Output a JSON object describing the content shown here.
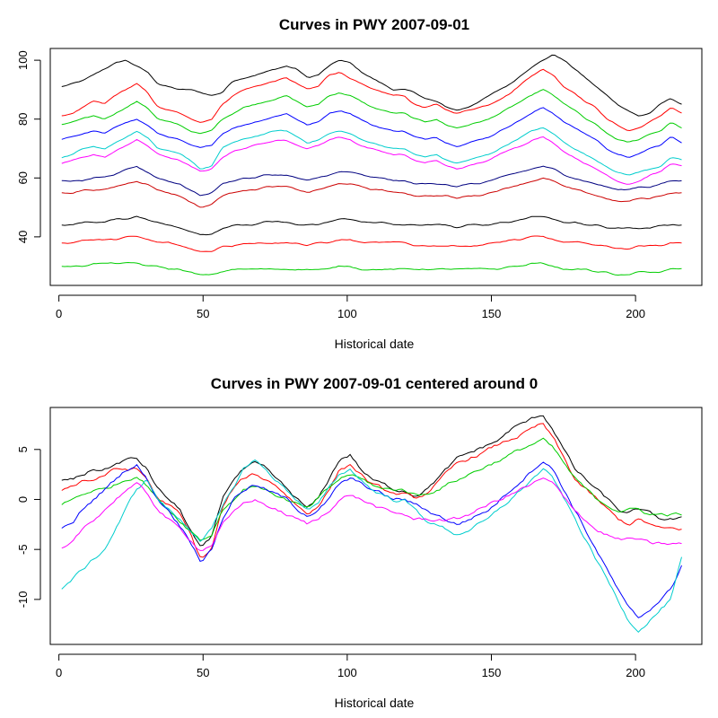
{
  "chart_data": [
    {
      "type": "line",
      "title": "Curves in PWY 2007-09-01",
      "xlabel": "Historical date",
      "ylabel": "",
      "xlim": [
        -3,
        223
      ],
      "ylim": [
        23.5,
        104
      ],
      "xticks": [
        0,
        50,
        100,
        150,
        200
      ],
      "xtick_labels": [
        "0",
        "50",
        "100",
        "150",
        "200"
      ],
      "yticks": [
        40,
        60,
        80,
        100
      ],
      "ytick_labels": [
        "40",
        "60",
        "80",
        "100"
      ],
      "n_points": 216,
      "grid": false,
      "legend": "none",
      "series_colors": [
        "#000000",
        "#ff0000",
        "#00cd00",
        "#0000ff",
        "#00cdcd",
        "#ff00ff",
        "#000080",
        "#cc0000"
      ],
      "series": [
        {
          "values": [
            91,
            92,
            93,
            95,
            97,
            99,
            100,
            98,
            96,
            92,
            91,
            90,
            90,
            89,
            88,
            89,
            93,
            94,
            95,
            96,
            97,
            98,
            97,
            94,
            95,
            98,
            100,
            99,
            96,
            94,
            92,
            90,
            90,
            89,
            87,
            86,
            84,
            83,
            84,
            86,
            88,
            90,
            92,
            95,
            98,
            100,
            102,
            100,
            97,
            94,
            91,
            88,
            85,
            83,
            81,
            82,
            85,
            87,
            85
          ]
        },
        {
          "values": [
            81,
            82,
            84,
            86,
            85,
            88,
            90,
            92,
            89,
            84,
            83,
            82,
            80,
            79,
            80,
            85,
            88,
            90,
            91,
            92,
            93,
            94,
            92,
            90,
            91,
            95,
            96,
            94,
            92,
            90,
            89,
            88,
            88,
            85,
            84,
            85,
            83,
            82,
            83,
            84,
            85,
            87,
            89,
            92,
            95,
            97,
            95,
            91,
            89,
            86,
            84,
            80,
            78,
            76,
            77,
            79,
            81,
            84,
            82
          ]
        },
        {
          "values": [
            78,
            79,
            80,
            81,
            80,
            82,
            84,
            86,
            84,
            80,
            79,
            78,
            76,
            75,
            76,
            80,
            82,
            84,
            85,
            86,
            87,
            88,
            86,
            84,
            85,
            88,
            89,
            88,
            86,
            84,
            83,
            82,
            82,
            80,
            79,
            80,
            78,
            77,
            78,
            79,
            80,
            82,
            84,
            86,
            88,
            90,
            88,
            85,
            83,
            80,
            78,
            75,
            73,
            72,
            73,
            75,
            76,
            79,
            77
          ]
        },
        {
          "values": [
            73,
            74,
            75,
            76,
            75,
            77,
            79,
            80,
            78,
            75,
            74,
            73,
            71,
            70,
            71,
            75,
            77,
            78,
            79,
            80,
            81,
            82,
            80,
            78,
            79,
            82,
            83,
            82,
            80,
            78,
            77,
            76,
            76,
            74,
            73,
            74,
            72,
            71,
            72,
            73,
            74,
            76,
            78,
            80,
            82,
            84,
            82,
            79,
            77,
            75,
            73,
            70,
            68,
            67,
            68,
            70,
            71,
            74,
            72
          ]
        },
        {
          "values": [
            67,
            68,
            70,
            71,
            70,
            72,
            74,
            76,
            74,
            70,
            69,
            68,
            66,
            63,
            64,
            70,
            72,
            73,
            74,
            75,
            76,
            76,
            74,
            72,
            73,
            75,
            76,
            75,
            73,
            72,
            71,
            70,
            70,
            68,
            67,
            68,
            66,
            65,
            66,
            67,
            68,
            70,
            72,
            74,
            76,
            77,
            75,
            72,
            70,
            68,
            66,
            64,
            62,
            61,
            62,
            63,
            64,
            67,
            66
          ]
        },
        {
          "values": [
            65,
            66,
            67,
            68,
            67,
            69,
            71,
            73,
            71,
            68,
            67,
            66,
            64,
            62,
            63,
            67,
            69,
            70,
            71,
            72,
            73,
            73,
            71,
            70,
            71,
            73,
            74,
            73,
            71,
            70,
            69,
            68,
            68,
            66,
            65,
            66,
            64,
            63,
            64,
            65,
            66,
            68,
            70,
            71,
            73,
            74,
            72,
            69,
            67,
            65,
            63,
            61,
            59,
            58,
            59,
            61,
            62,
            65,
            64
          ]
        },
        {
          "values": [
            59,
            59,
            59,
            60,
            60,
            61,
            63,
            64,
            62,
            60,
            59,
            58,
            56,
            54,
            55,
            58,
            59,
            60,
            60,
            61,
            61,
            61,
            60,
            59,
            60,
            61,
            62,
            62,
            61,
            60,
            60,
            59,
            59,
            58,
            58,
            58,
            58,
            57,
            58,
            58,
            59,
            60,
            61,
            62,
            63,
            64,
            63,
            61,
            60,
            59,
            58,
            57,
            56,
            56,
            57,
            57,
            58,
            59,
            59
          ]
        },
        {
          "values": [
            55,
            55,
            56,
            56,
            56,
            57,
            58,
            59,
            58,
            56,
            55,
            54,
            52,
            50,
            51,
            54,
            55,
            56,
            56,
            57,
            57,
            57,
            56,
            55,
            56,
            57,
            58,
            58,
            57,
            56,
            56,
            55,
            55,
            54,
            54,
            54,
            54,
            53,
            54,
            54,
            55,
            56,
            57,
            58,
            59,
            60,
            59,
            57,
            56,
            55,
            54,
            53,
            52,
            52,
            53,
            53,
            54,
            55,
            55
          ]
        },
        {
          "values": [
            44,
            44,
            45,
            45,
            45,
            46,
            46,
            47,
            46,
            45,
            44,
            43,
            42,
            41,
            41,
            43,
            44,
            44,
            44,
            45,
            45,
            45,
            44,
            44,
            44,
            45,
            46,
            46,
            45,
            45,
            45,
            44,
            44,
            44,
            44,
            44,
            44,
            43,
            44,
            44,
            44,
            45,
            45,
            46,
            47,
            47,
            46,
            45,
            45,
            44,
            44,
            43,
            43,
            43,
            43,
            43,
            44,
            44,
            44
          ]
        },
        {
          "values": [
            38,
            38,
            39,
            39,
            39,
            39,
            40,
            40,
            39,
            38,
            38,
            37,
            36,
            35,
            35,
            37,
            37,
            38,
            38,
            38,
            38,
            38,
            38,
            37,
            38,
            38,
            39,
            39,
            38,
            38,
            38,
            38,
            38,
            37,
            37,
            37,
            37,
            37,
            37,
            37,
            38,
            38,
            39,
            39,
            40,
            40,
            39,
            38,
            38,
            38,
            37,
            37,
            36,
            36,
            37,
            37,
            37,
            38,
            38
          ]
        },
        {
          "values": [
            30,
            30,
            30,
            31,
            31,
            31,
            31,
            31,
            30,
            30,
            29,
            29,
            28,
            27,
            27,
            28,
            29,
            29,
            29,
            29,
            29,
            29,
            29,
            29,
            29,
            29,
            30,
            30,
            29,
            29,
            29,
            29,
            29,
            29,
            29,
            29,
            29,
            29,
            29,
            29,
            29,
            29,
            30,
            30,
            31,
            31,
            30,
            29,
            29,
            29,
            28,
            28,
            27,
            27,
            28,
            28,
            28,
            29,
            29
          ]
        }
      ]
    },
    {
      "type": "line",
      "title": "Curves in PWY 2007-09-01 centered around 0",
      "xlabel": "Historical date",
      "ylabel": "",
      "xlim": [
        -3,
        223
      ],
      "ylim": [
        -14.5,
        9.2
      ],
      "xticks": [
        0,
        50,
        100,
        150,
        200
      ],
      "xtick_labels": [
        "0",
        "50",
        "100",
        "150",
        "200"
      ],
      "yticks": [
        -10,
        -5,
        0,
        5
      ],
      "ytick_labels": [
        "-10",
        "-5",
        "0",
        "5"
      ],
      "n_points": 216,
      "grid": false,
      "legend": "none",
      "series_colors": [
        "#000000",
        "#ff0000",
        "#00cd00",
        "#0000ff",
        "#00cdcd",
        "#ff00ff",
        "#000080",
        "#cc0000"
      ],
      "series": [
        {
          "values": [
            2,
            2,
            2.5,
            3,
            3,
            3.5,
            4,
            4,
            3,
            1,
            0,
            -1,
            -3,
            -5,
            -4,
            0,
            2,
            3,
            3.5,
            3,
            2,
            1,
            0,
            -1,
            0,
            2,
            4,
            4.5,
            3,
            2,
            1.5,
            1,
            1,
            0.5,
            1,
            2,
            3,
            4,
            4.5,
            5,
            5.5,
            6,
            7,
            7.5,
            8,
            8.5,
            7,
            5,
            3,
            2,
            1,
            0,
            -1,
            -1.5,
            -1,
            -1.5,
            -2,
            -2,
            -2
          ]
        },
        {
          "values": [
            1,
            1.5,
            2,
            2,
            2.5,
            3,
            3,
            3,
            2,
            0,
            -0.5,
            -1.5,
            -3.5,
            -6,
            -5,
            -1,
            1,
            2,
            2.5,
            2,
            1.5,
            0.5,
            -0.5,
            -1.5,
            -0.5,
            1,
            3,
            3.5,
            2.5,
            1.5,
            1,
            0.5,
            0.5,
            0,
            0.5,
            1.5,
            2.5,
            3.5,
            4,
            4.5,
            5,
            5.5,
            6,
            6.5,
            7,
            7.5,
            6,
            4,
            2,
            1,
            0,
            -1,
            -2,
            -2.5,
            -2,
            -2.5,
            -3,
            -3,
            -3
          ]
        },
        {
          "values": [
            -0.5,
            0,
            0.5,
            1,
            1,
            1.5,
            2,
            2.5,
            1.5,
            0,
            -1,
            -2,
            -3,
            -4,
            -3.5,
            -1,
            0,
            1,
            1.5,
            1,
            0.5,
            0,
            -0.5,
            -1,
            0,
            1,
            2,
            2.5,
            2,
            1.5,
            1,
            1,
            1,
            0.5,
            0.5,
            1,
            1.5,
            2,
            2.5,
            3,
            3.5,
            4,
            4.5,
            5,
            5.5,
            6,
            5,
            3.5,
            2,
            1,
            0,
            -0.5,
            -1,
            -1,
            -1,
            -1.5,
            -1.5,
            -1.5,
            -1.5
          ]
        },
        {
          "values": [
            -3,
            -2.5,
            -1,
            0,
            1,
            2,
            3,
            3.5,
            2,
            0,
            -1,
            -2.5,
            -4,
            -6,
            -5,
            -2,
            0,
            1,
            1.5,
            1,
            0.5,
            0,
            -1,
            -1.5,
            -1,
            0,
            1.5,
            2,
            1.5,
            1,
            0.5,
            0,
            0,
            -0.5,
            -1,
            -1.5,
            -2,
            -2.5,
            -2,
            -1.5,
            -1,
            0,
            1,
            2,
            3,
            4,
            3,
            1,
            -1,
            -3,
            -5,
            -7,
            -9,
            -11,
            -12,
            -11,
            -10,
            -9,
            -6.5
          ]
        },
        {
          "values": [
            -9,
            -8,
            -7,
            -6,
            -5,
            -3,
            -1,
            1,
            2,
            0,
            -1,
            -2,
            -3,
            -4,
            -3,
            -1,
            1,
            3,
            4,
            3,
            2,
            1,
            0,
            -1,
            -0.5,
            1,
            2.5,
            3,
            2,
            1,
            0.5,
            0,
            0,
            -1,
            -2,
            -2.5,
            -3,
            -3.5,
            -3,
            -2.5,
            -2,
            -1,
            0,
            1,
            2,
            3,
            2,
            0,
            -2,
            -4,
            -6,
            -8,
            -10,
            -12,
            -13,
            -12,
            -11,
            -10,
            -6
          ]
        },
        {
          "values": [
            -5,
            -4.5,
            -3,
            -2,
            -1,
            0,
            1,
            1.5,
            0.5,
            -1,
            -2,
            -3,
            -4,
            -5,
            -4.5,
            -2.5,
            -1.5,
            -0.5,
            0,
            -0.5,
            -1,
            -1.5,
            -2,
            -2.5,
            -2,
            -1,
            0,
            0.5,
            0,
            -0.5,
            -1,
            -1.5,
            -1.5,
            -2,
            -2,
            -2,
            -2,
            -2,
            -1.5,
            -1,
            -0.5,
            0,
            0.5,
            1,
            1.5,
            2,
            1.5,
            0,
            -1,
            -2,
            -3,
            -3.5,
            -4,
            -4,
            -4,
            -4.5,
            -4.5,
            -4.5,
            -4.5
          ]
        }
      ]
    }
  ]
}
